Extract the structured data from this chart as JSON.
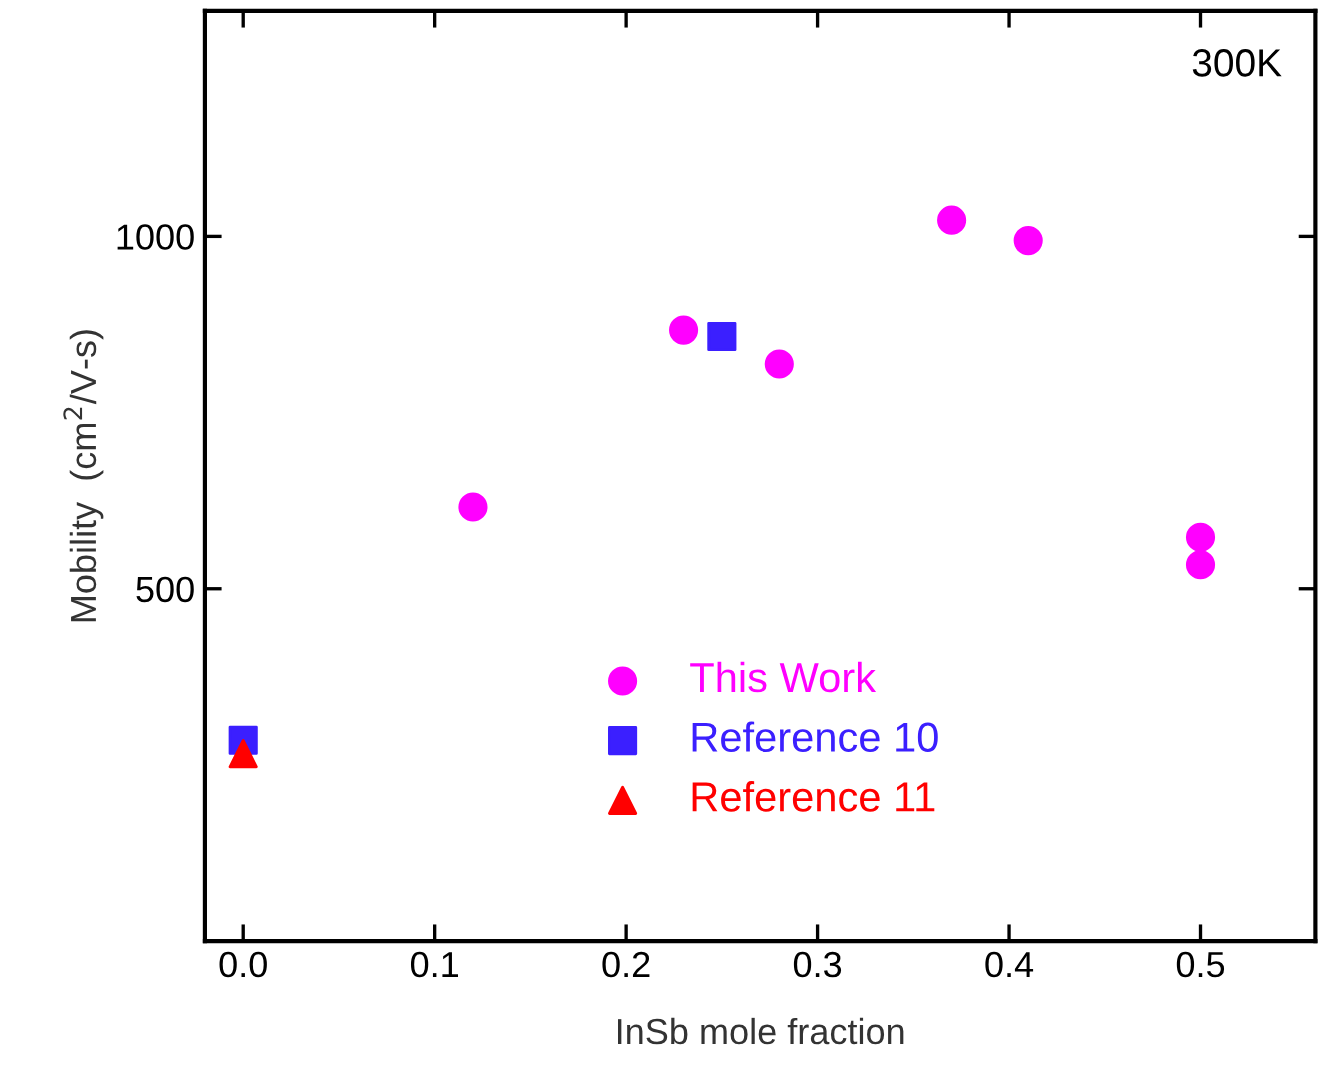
{
  "chart_data": {
    "type": "scatter",
    "xlabel": "InSb mole fraction",
    "ylabel": "Mobility  (cm$^{2}$/V-s)",
    "xlim": [
      -0.02,
      0.56
    ],
    "xticks": [
      {
        "value": 0,
        "label": "0.0"
      },
      0.1,
      0.2,
      0.3,
      0.4,
      0.5
    ],
    "ylim": [
      0,
      1320
    ],
    "yticks": [
      500,
      1000
    ],
    "annotations": [
      "300K"
    ],
    "legend": "bottom",
    "grid": false,
    "series": [
      {
        "name": "This Work",
        "color": "#ff00ff",
        "marker": "circle",
        "x": [
          0.12,
          0.23,
          0.28,
          0.37,
          0.41,
          0.5,
          0.5
        ],
        "values": [
          616,
          867,
          819,
          1023,
          994,
          573,
          534
        ]
      },
      {
        "name": "Reference 10",
        "color": "#3b1fff",
        "marker": "square",
        "x": [
          0,
          0.25
        ],
        "values": [
          285,
          858
        ]
      },
      {
        "name": "Reference 11",
        "color": "#ff0000",
        "marker": "triangle",
        "x": [
          0
        ],
        "values": [
          266
        ]
      }
    ]
  }
}
